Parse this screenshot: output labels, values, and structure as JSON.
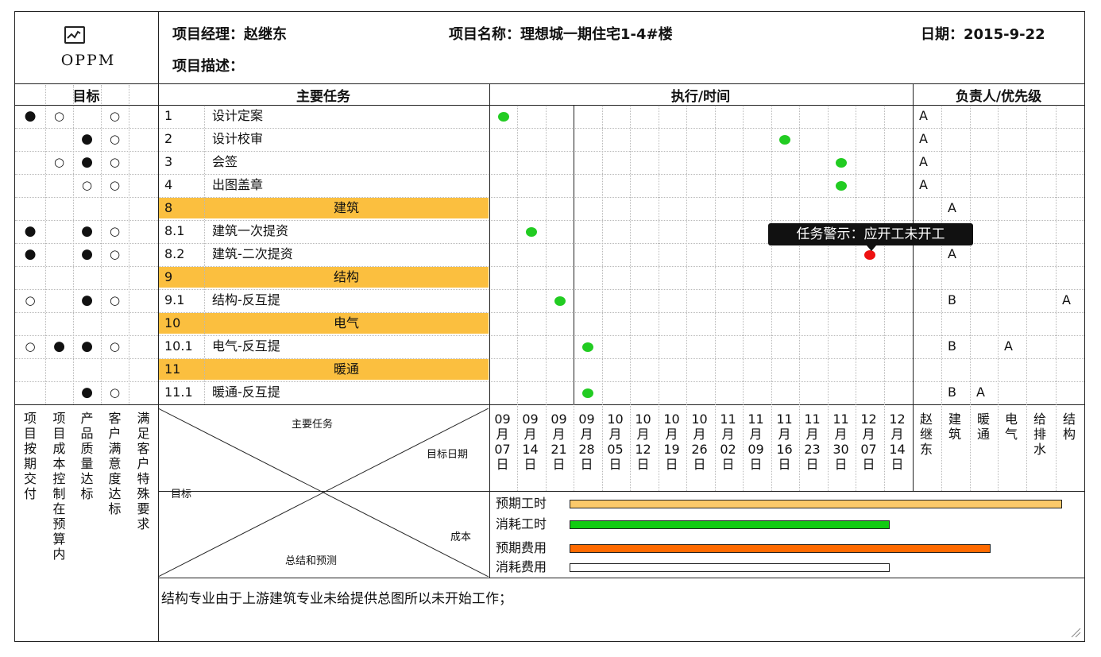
{
  "header": {
    "logo_text": "OPPM",
    "manager": "项目经理：赵继东",
    "project_name": "项目名称：理想城一期住宅1-4#楼",
    "date": "日期：2015-9-22",
    "description": "项目描述："
  },
  "columns": {
    "goals": "目标",
    "tasks": "主要任务",
    "execution": "执行/时间",
    "owner": "负责人/优先级"
  },
  "goal_symbols": {
    "filled": "●",
    "empty": "○"
  },
  "rows": [
    {
      "no": "1",
      "name": "设计定案",
      "goals": [
        "filled",
        "empty",
        "",
        "empty",
        ""
      ],
      "owners": [
        "A",
        "",
        "",
        "",
        "",
        ""
      ]
    },
    {
      "no": "2",
      "name": "设计校审",
      "goals": [
        "",
        "",
        "filled",
        "empty",
        ""
      ],
      "owners": [
        "A",
        "",
        "",
        "",
        "",
        ""
      ]
    },
    {
      "no": "3",
      "name": "会签",
      "goals": [
        "",
        "empty",
        "filled",
        "empty",
        ""
      ],
      "owners": [
        "A",
        "",
        "",
        "",
        "",
        ""
      ]
    },
    {
      "no": "4",
      "name": "出图盖章",
      "goals": [
        "",
        "",
        "empty",
        "empty",
        ""
      ],
      "owners": [
        "A",
        "",
        "",
        "",
        "",
        ""
      ]
    },
    {
      "no": "8",
      "name": "建筑",
      "group": true,
      "goals": [
        "",
        "",
        "",
        "",
        ""
      ],
      "owners": [
        "",
        "A",
        "",
        "",
        "",
        ""
      ]
    },
    {
      "no": "8.1",
      "name": "建筑一次提资",
      "goals": [
        "filled",
        "",
        "filled",
        "empty",
        ""
      ],
      "owners": [
        "",
        "",
        "",
        "",
        "",
        ""
      ]
    },
    {
      "no": "8.2",
      "name": "建筑-二次提资",
      "goals": [
        "filled",
        "",
        "filled",
        "empty",
        ""
      ],
      "owners": [
        "",
        "A",
        "",
        "",
        "",
        ""
      ]
    },
    {
      "no": "9",
      "name": "结构",
      "group": true,
      "goals": [
        "",
        "",
        "",
        "",
        ""
      ],
      "owners": [
        "",
        "",
        "",
        "",
        "",
        ""
      ]
    },
    {
      "no": "9.1",
      "name": "结构-反互提",
      "goals": [
        "empty",
        "",
        "filled",
        "empty",
        ""
      ],
      "owners": [
        "",
        "B",
        "",
        "",
        "",
        "A"
      ]
    },
    {
      "no": "10",
      "name": "电气",
      "group": true,
      "goals": [
        "",
        "",
        "",
        "",
        ""
      ],
      "owners": [
        "",
        "",
        "",
        "",
        "",
        ""
      ]
    },
    {
      "no": "10.1",
      "name": "电气-反互提",
      "goals": [
        "empty",
        "filled",
        "filled",
        "empty",
        ""
      ],
      "owners": [
        "",
        "B",
        "",
        "A",
        "",
        ""
      ]
    },
    {
      "no": "11",
      "name": "暖通",
      "group": true,
      "goals": [
        "",
        "",
        "",
        "",
        ""
      ],
      "owners": [
        "",
        "",
        "",
        "",
        "",
        ""
      ]
    },
    {
      "no": "11.1",
      "name": "暖通-反互提",
      "goals": [
        "",
        "",
        "filled",
        "empty",
        ""
      ],
      "owners": [
        "",
        "B",
        "A",
        "",
        "",
        ""
      ]
    }
  ],
  "markers": [
    {
      "row": 0,
      "col": 0,
      "status": "green"
    },
    {
      "row": 1,
      "col": 10,
      "status": "green"
    },
    {
      "row": 2,
      "col": 12,
      "status": "green"
    },
    {
      "row": 3,
      "col": 12,
      "status": "green"
    },
    {
      "row": 5,
      "col": 1,
      "status": "green"
    },
    {
      "row": 6,
      "col": 13,
      "status": "red"
    },
    {
      "row": 8,
      "col": 2,
      "status": "green"
    },
    {
      "row": 10,
      "col": 3,
      "status": "green"
    },
    {
      "row": 12,
      "col": 3,
      "status": "green"
    }
  ],
  "tooltip": "任务警示：应开工未开工",
  "goal_labels": [
    "项目按期交付",
    "项目成本控制在预算内",
    "产品质量达标",
    "客户满意度达标",
    "满足客户特殊要求"
  ],
  "matrix": {
    "top": "主要任务",
    "right": "目标日期",
    "left": "目标",
    "right_lower": "成本",
    "bottom": "总结和预测"
  },
  "dates": [
    "09月07日",
    "09月14日",
    "09月21日",
    "09月28日",
    "10月05日",
    "10月12日",
    "10月19日",
    "10月26日",
    "11月02日",
    "11月09日",
    "11月16日",
    "11月23日",
    "11月30日",
    "12月07日",
    "12月14日"
  ],
  "people": [
    "赵继东",
    "建筑",
    "暖通",
    "电气",
    "给排水",
    "结构"
  ],
  "costs": [
    {
      "label": "预期工时",
      "fraction": 1.0,
      "color": "#fbc96a"
    },
    {
      "label": "消耗工时",
      "fraction": 0.65,
      "color": "#11cc11"
    },
    {
      "label": "预期费用",
      "fraction": 0.855,
      "color": "#ff6a00"
    },
    {
      "label": "消耗费用",
      "fraction": 0.65,
      "color": "#ffffff"
    }
  ],
  "summary": "结构专业由于上游建筑专业未给提供总图所以未开始工作；"
}
